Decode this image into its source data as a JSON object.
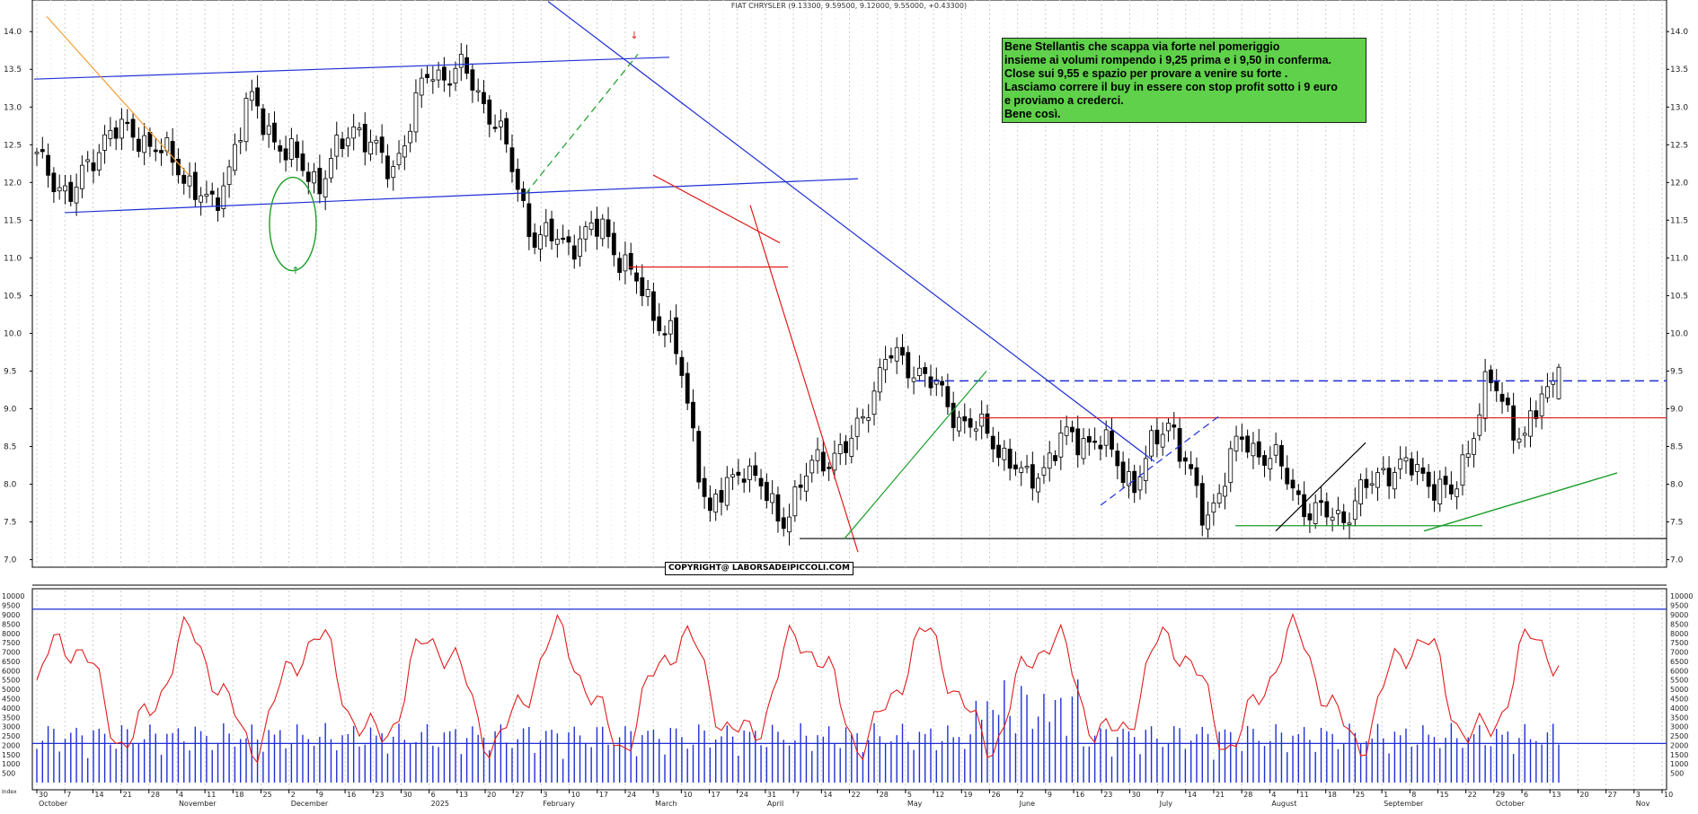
{
  "header": {
    "title": "FIAT CHRYSLER (9.13300, 9.59500, 9.12000, 9.55000, +0.43300)"
  },
  "note": {
    "lines": [
      "Bene Stellantis che scappa via forte nel pomeriggio",
      "insieme ai volumi rompendo i 9,25 prima e i 9,50 in conferma.",
      "Close sui 9,55 e spazio per provare a venire su forte .",
      "Lasciamo correre il buy in essere con stop profit sotto i 9 euro",
      "e proviamo a crederci.",
      "Bene così."
    ]
  },
  "copyright": "COPYRIGHT@ LABORSADEIPICCOLI.COM",
  "colors": {
    "up_candle": "#ffffff",
    "down_candle": "#000000",
    "trend_blue": "#1f2fd6",
    "trend_red": "#e01c1c",
    "trend_green": "#1a9e2a",
    "volume_bar": "#1f2fd6",
    "oscillator": "#e01c1c",
    "note_bg": "#5fd14a"
  },
  "chart_data": [
    {
      "type": "candlestick",
      "title": "FIAT CHRYSLER (9.13300, 9.59500, 9.12000, 9.55000, +0.43300)",
      "ylim": [
        6.9,
        14.3
      ],
      "y_ticks": [
        "7.0",
        "7.5",
        "8.0",
        "8.5",
        "9.0",
        "9.5",
        "10.0",
        "10.5",
        "11.0",
        "11.5",
        "12.0",
        "12.5",
        "13.0",
        "13.5",
        "14.0"
      ],
      "grid": true,
      "anchor_closes": [
        {
          "date": "Oct-01",
          "close": 12.3
        },
        {
          "date": "Oct-14",
          "close": 11.8
        },
        {
          "date": "Oct-28",
          "close": 12.7
        },
        {
          "date": "Nov-11",
          "close": 12.6
        },
        {
          "date": "Nov-25",
          "close": 12.2
        },
        {
          "date": "Dec-02",
          "close": 11.6
        },
        {
          "date": "Dec-09",
          "close": 13.1
        },
        {
          "date": "Dec-23",
          "close": 12.4
        },
        {
          "date": "Jan-13",
          "close": 12.0
        },
        {
          "date": "Jan-27",
          "close": 12.8
        },
        {
          "date": "Feb-03",
          "close": 12.1
        },
        {
          "date": "Feb-17",
          "close": 13.4
        },
        {
          "date": "Feb-24",
          "close": 13.5
        },
        {
          "date": "Feb-27",
          "close": 12.8
        },
        {
          "date": "Mar-03",
          "close": 11.3
        },
        {
          "date": "Mar-17",
          "close": 11.2
        },
        {
          "date": "Mar-24",
          "close": 11.4
        },
        {
          "date": "Mar-27",
          "close": 10.6
        },
        {
          "date": "Apr-02",
          "close": 9.9
        },
        {
          "date": "Apr-08",
          "close": 7.6
        },
        {
          "date": "Apr-14",
          "close": 8.3
        },
        {
          "date": "Apr-22",
          "close": 7.5
        },
        {
          "date": "Apr-28",
          "close": 8.3
        },
        {
          "date": "May-05",
          "close": 8.5
        },
        {
          "date": "May-12",
          "close": 9.7
        },
        {
          "date": "May-19",
          "close": 9.5
        },
        {
          "date": "Jun-02",
          "close": 8.9
        },
        {
          "date": "Jun-09",
          "close": 8.6
        },
        {
          "date": "Jun-16",
          "close": 8.0
        },
        {
          "date": "Jun-23",
          "close": 8.6
        },
        {
          "date": "Jul-07",
          "close": 8.6
        },
        {
          "date": "Jul-21",
          "close": 8.0
        },
        {
          "date": "Jul-28",
          "close": 8.9
        },
        {
          "date": "Aug-04",
          "close": 7.5
        },
        {
          "date": "Aug-18",
          "close": 8.6
        },
        {
          "date": "Aug-25",
          "close": 8.3
        },
        {
          "date": "Sep-01",
          "close": 7.6
        },
        {
          "date": "Sep-08",
          "close": 7.6
        },
        {
          "date": "Sep-15",
          "close": 8.2
        },
        {
          "date": "Sep-22",
          "close": 8.2
        },
        {
          "date": "Sep-29",
          "close": 7.8
        },
        {
          "date": "Oct-06",
          "close": 9.4
        },
        {
          "date": "Oct-13",
          "close": 8.6
        },
        {
          "date": "Oct-20",
          "close": 9.55
        }
      ],
      "last": {
        "open": 9.133,
        "high": 9.595,
        "low": 9.12,
        "close": 9.55,
        "change": 0.433
      }
    },
    {
      "type": "bar",
      "series": "volume",
      "ylim": [
        0,
        10300
      ],
      "y_ticks": [
        "500",
        "1000",
        "1500",
        "2000",
        "2500",
        "3000",
        "3500",
        "4000",
        "4500",
        "5000",
        "5500",
        "6000",
        "6500",
        "7000",
        "7500",
        "8000",
        "8500",
        "9000",
        "9500",
        "10000"
      ],
      "threshold_lines": [
        2100,
        9300
      ]
    },
    {
      "type": "line",
      "series": "oscillator",
      "ylim": [
        0,
        10300
      ]
    }
  ],
  "x_axis": {
    "tick_labels": [
      "30",
      "7",
      "14",
      "21",
      "28",
      "4",
      "11",
      "18",
      "25",
      "2",
      "9",
      "16",
      "23",
      "30",
      "6",
      "13",
      "20",
      "27",
      "3",
      "10",
      "17",
      "24",
      "3",
      "10",
      "17",
      "24",
      "31",
      "7",
      "14",
      "22",
      "28",
      "5",
      "12",
      "19",
      "26",
      "2",
      "9",
      "16",
      "23",
      "30",
      "7",
      "14",
      "21",
      "28",
      "4",
      "11",
      "18",
      "25",
      "1",
      "8",
      "15",
      "22",
      "29",
      "6",
      "13",
      "20",
      "27",
      "3",
      "10"
    ],
    "month_labels": [
      "October",
      "November",
      "December",
      "2025",
      "February",
      "March",
      "April",
      "May",
      "June",
      "July",
      "August",
      "September",
      "October",
      "Nov"
    ],
    "end_label_top": "Index"
  }
}
